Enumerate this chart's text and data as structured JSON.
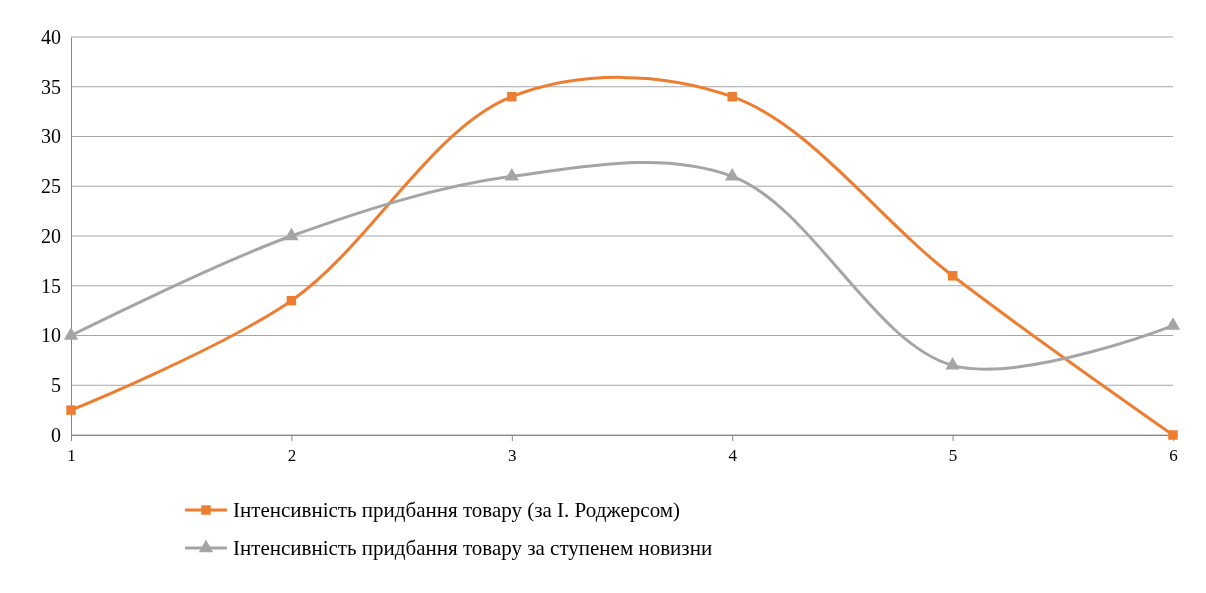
{
  "chart_data": {
    "type": "line",
    "categories": [
      "1",
      "2",
      "3",
      "4",
      "5",
      "6"
    ],
    "ylim": [
      0,
      40
    ],
    "yticks": [
      0,
      5,
      10,
      15,
      20,
      25,
      30,
      35,
      40
    ],
    "grid": "y",
    "legend": "bottom",
    "line_style": "solid",
    "series": [
      {
        "name": "Інтенсивність придбання товару (за І. Роджерсом)",
        "color": "#ed7d31",
        "marker": "square",
        "values": [
          2.5,
          13.5,
          34,
          34,
          16,
          0
        ]
      },
      {
        "name": "Інтенсивність придбання товару за ступенем новизни",
        "color": "#a5a5a5",
        "marker": "triangle",
        "values": [
          10,
          20,
          26,
          26,
          7,
          11
        ]
      }
    ]
  }
}
